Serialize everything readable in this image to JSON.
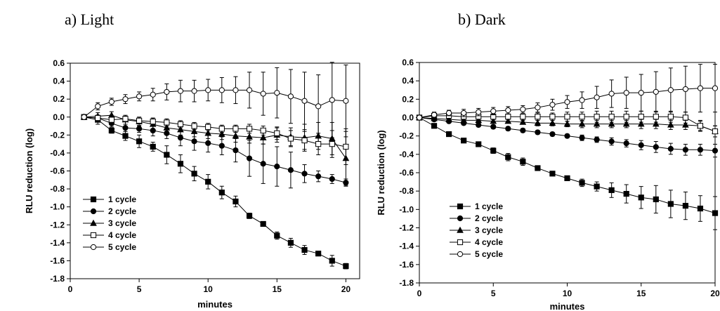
{
  "chart_data": [
    {
      "type": "line",
      "title": "a) Light",
      "xlabel": "minutes",
      "ylabel": "RLU reduction (log)",
      "xlim": [
        0,
        21
      ],
      "ylim": [
        -1.8,
        0.6
      ],
      "xticks": [
        "0",
        "5",
        "10",
        "15",
        "20"
      ],
      "yticks": [
        "0.6",
        "0.4",
        "0.2",
        "0.0",
        "-0.2",
        "-0.4",
        "-0.6",
        "-0.8",
        "-1.0",
        "-1.2",
        "-1.4",
        "-1.6",
        "-1.8"
      ],
      "legend_position": "bottom-left",
      "x": [
        1,
        2,
        3,
        4,
        5,
        6,
        7,
        8,
        9,
        10,
        11,
        12,
        13,
        14,
        15,
        16,
        17,
        18,
        19,
        20
      ],
      "series": [
        {
          "name": "1 cycle",
          "marker": "square-filled",
          "values": [
            0,
            -0.03,
            -0.15,
            -0.21,
            -0.27,
            -0.33,
            -0.42,
            -0.52,
            -0.63,
            -0.72,
            -0.84,
            -0.94,
            -1.1,
            -1.19,
            -1.32,
            -1.4,
            -1.48,
            -1.52,
            -1.6,
            -1.66
          ],
          "errors": [
            0.02,
            0.05,
            0.03,
            0.05,
            0.07,
            0.05,
            0.1,
            0.1,
            0.08,
            0.08,
            0.07,
            0.06,
            0.03,
            0.02,
            0.04,
            0.05,
            0.05,
            0.02,
            0.06,
            0.03
          ]
        },
        {
          "name": "2 cycle",
          "marker": "circle-filled",
          "values": [
            0,
            -0.01,
            -0.07,
            -0.12,
            -0.13,
            -0.15,
            -0.18,
            -0.23,
            -0.27,
            -0.29,
            -0.32,
            -0.37,
            -0.46,
            -0.52,
            -0.55,
            -0.59,
            -0.63,
            -0.66,
            -0.69,
            -0.73
          ],
          "errors": [
            0.02,
            0.03,
            0.04,
            0.04,
            0.04,
            0.06,
            0.06,
            0.09,
            0.1,
            0.1,
            0.1,
            0.13,
            0.2,
            0.22,
            0.22,
            0.2,
            0.1,
            0.06,
            0.05,
            0.04
          ]
        },
        {
          "name": "3 cycle",
          "marker": "triangle-filled",
          "values": [
            0,
            0.01,
            0.02,
            -0.03,
            -0.05,
            -0.08,
            -0.12,
            -0.14,
            -0.16,
            -0.18,
            -0.19,
            -0.21,
            -0.22,
            -0.23,
            -0.2,
            -0.22,
            -0.23,
            -0.21,
            -0.24,
            -0.46
          ],
          "errors": [
            0.02,
            0.04,
            0.04,
            0.05,
            0.05,
            0.06,
            0.06,
            0.06,
            0.06,
            0.06,
            0.06,
            0.07,
            0.07,
            0.07,
            0.08,
            0.1,
            0.15,
            0.15,
            0.18,
            0.3
          ]
        },
        {
          "name": "4 cycle",
          "marker": "square-open",
          "values": [
            0,
            -0.01,
            -0.03,
            -0.02,
            -0.04,
            -0.05,
            -0.06,
            -0.08,
            -0.1,
            -0.11,
            -0.13,
            -0.13,
            -0.13,
            -0.15,
            -0.18,
            -0.24,
            -0.26,
            -0.3,
            -0.3,
            -0.33
          ],
          "errors": [
            0.02,
            0.03,
            0.03,
            0.03,
            0.03,
            0.04,
            0.04,
            0.04,
            0.04,
            0.04,
            0.04,
            0.04,
            0.05,
            0.05,
            0.07,
            0.09,
            0.1,
            0.12,
            0.15,
            0.2
          ]
        },
        {
          "name": "5 cycle",
          "marker": "circle-open",
          "values": [
            0,
            0.12,
            0.17,
            0.2,
            0.23,
            0.25,
            0.28,
            0.29,
            0.29,
            0.3,
            0.3,
            0.3,
            0.3,
            0.26,
            0.27,
            0.23,
            0.18,
            0.12,
            0.19,
            0.18
          ],
          "errors": [
            0.02,
            0.04,
            0.04,
            0.05,
            0.05,
            0.07,
            0.09,
            0.12,
            0.12,
            0.12,
            0.14,
            0.15,
            0.2,
            0.24,
            0.28,
            0.3,
            0.32,
            0.35,
            0.42,
            0.4
          ]
        }
      ]
    },
    {
      "type": "line",
      "title": "b) Dark",
      "xlabel": "minutes",
      "ylabel": "RLU reduction (log)",
      "xlim": [
        0,
        20
      ],
      "ylim": [
        -1.8,
        0.6
      ],
      "xticks": [
        "0",
        "5",
        "10",
        "15",
        "20"
      ],
      "yticks": [
        "0.6",
        "0.4",
        "0.2",
        "0.0",
        "-0.2",
        "-0.4",
        "-0.6",
        "-0.8",
        "-1.0",
        "-1.2",
        "-1.4",
        "-1.6",
        "-1.8"
      ],
      "legend_position": "bottom-left",
      "x": [
        0,
        1,
        2,
        3,
        4,
        5,
        6,
        7,
        8,
        9,
        10,
        11,
        12,
        13,
        14,
        15,
        16,
        17,
        18,
        19,
        20
      ],
      "series": [
        {
          "name": "1 cycle",
          "marker": "square-filled",
          "values": [
            0,
            -0.09,
            -0.18,
            -0.25,
            -0.29,
            -0.36,
            -0.43,
            -0.48,
            -0.55,
            -0.61,
            -0.66,
            -0.71,
            -0.75,
            -0.79,
            -0.83,
            -0.87,
            -0.89,
            -0.94,
            -0.96,
            -0.99,
            -1.04
          ],
          "errors": [
            0.01,
            0.02,
            0.02,
            0.02,
            0.02,
            0.03,
            0.04,
            0.04,
            0.02,
            0.02,
            0.02,
            0.04,
            0.05,
            0.08,
            0.1,
            0.12,
            0.15,
            0.15,
            0.15,
            0.14,
            0.18
          ]
        },
        {
          "name": "2 cycle",
          "marker": "circle-filled",
          "values": [
            0,
            -0.02,
            -0.04,
            -0.06,
            -0.08,
            -0.1,
            -0.12,
            -0.14,
            -0.16,
            -0.18,
            -0.2,
            -0.22,
            -0.24,
            -0.26,
            -0.28,
            -0.3,
            -0.32,
            -0.34,
            -0.35,
            -0.35,
            -0.36
          ],
          "errors": [
            0.01,
            0.02,
            0.02,
            0.02,
            0.02,
            0.02,
            0.02,
            0.02,
            0.02,
            0.02,
            0.02,
            0.03,
            0.03,
            0.04,
            0.04,
            0.05,
            0.06,
            0.06,
            0.06,
            0.06,
            0.07
          ]
        },
        {
          "name": "3 cycle",
          "marker": "triangle-filled",
          "values": [
            0,
            -0.01,
            -0.02,
            -0.03,
            -0.03,
            -0.04,
            -0.04,
            -0.05,
            -0.06,
            -0.06,
            -0.07,
            -0.07,
            -0.07,
            -0.07,
            -0.07,
            -0.07,
            -0.07,
            -0.08,
            -0.08,
            -0.09,
            -0.15
          ],
          "errors": [
            0.01,
            0.02,
            0.02,
            0.02,
            0.02,
            0.02,
            0.02,
            0.02,
            0.03,
            0.03,
            0.03,
            0.04,
            0.04,
            0.04,
            0.04,
            0.05,
            0.05,
            0.05,
            0.05,
            0.05,
            0.06
          ]
        },
        {
          "name": "4 cycle",
          "marker": "square-open",
          "values": [
            0,
            0.02,
            0.02,
            0.01,
            0.01,
            0.01,
            0.01,
            0.01,
            0.01,
            0.01,
            0.01,
            0.01,
            0.01,
            0.01,
            0.01,
            0.01,
            0.01,
            0.01,
            0.0,
            -0.09,
            -0.15
          ],
          "errors": [
            0.01,
            0.02,
            0.03,
            0.03,
            0.03,
            0.03,
            0.03,
            0.03,
            0.04,
            0.04,
            0.05,
            0.05,
            0.06,
            0.06,
            0.06,
            0.06,
            0.06,
            0.06,
            0.06,
            0.06,
            0.06
          ]
        },
        {
          "name": "5 cycle",
          "marker": "circle-open",
          "values": [
            0,
            0.03,
            0.05,
            0.05,
            0.06,
            0.07,
            0.08,
            0.09,
            0.11,
            0.14,
            0.17,
            0.19,
            0.22,
            0.26,
            0.27,
            0.27,
            0.28,
            0.3,
            0.31,
            0.32,
            0.32
          ],
          "errors": [
            0.01,
            0.03,
            0.03,
            0.04,
            0.04,
            0.04,
            0.04,
            0.04,
            0.05,
            0.06,
            0.07,
            0.09,
            0.12,
            0.15,
            0.17,
            0.2,
            0.22,
            0.24,
            0.25,
            0.26,
            0.26
          ]
        }
      ]
    }
  ]
}
